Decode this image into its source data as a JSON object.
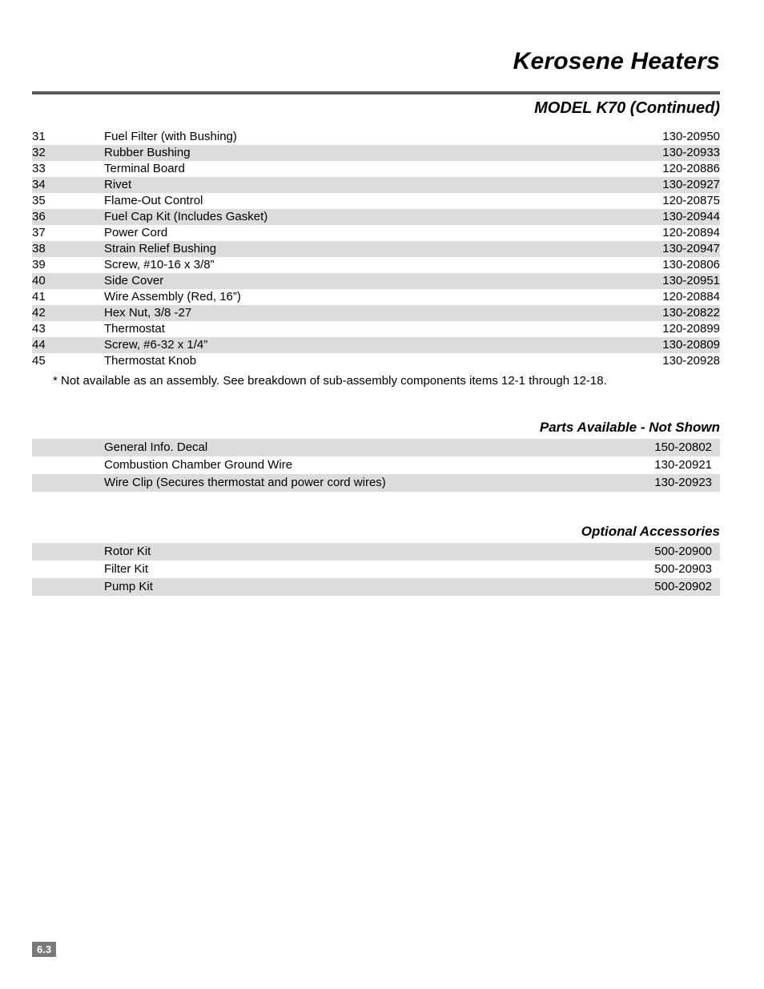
{
  "header": {
    "title": "Kerosene Heaters",
    "subtitle": "MODEL K70 (Continued)"
  },
  "parts": [
    {
      "num": "31",
      "desc": "Fuel Filter (with Bushing)",
      "part": "130-20950",
      "shade": false
    },
    {
      "num": "32",
      "desc": "Rubber Bushing",
      "part": "130-20933",
      "shade": true
    },
    {
      "num": "33",
      "desc": "Terminal Board",
      "part": "120-20886",
      "shade": false
    },
    {
      "num": "34",
      "desc": "Rivet",
      "part": "130-20927",
      "shade": true
    },
    {
      "num": "35",
      "desc": "Flame-Out Control",
      "part": "120-20875",
      "shade": false
    },
    {
      "num": "36",
      "desc": "Fuel Cap Kit (Includes Gasket)",
      "part": "130-20944",
      "shade": true
    },
    {
      "num": "37",
      "desc": "Power Cord",
      "part": "120-20894",
      "shade": false
    },
    {
      "num": "38",
      "desc": "Strain Relief Bushing",
      "part": "130-20947",
      "shade": true
    },
    {
      "num": "39",
      "desc": "Screw, #10-16 x 3/8”",
      "part": "130-20806",
      "shade": false
    },
    {
      "num": "40",
      "desc": "Side Cover",
      "part": "130-20951",
      "shade": true
    },
    {
      "num": "41",
      "desc": "Wire Assembly (Red, 16”)",
      "part": "120-20884",
      "shade": false
    },
    {
      "num": "42",
      "desc": "Hex Nut, 3/8 -27",
      "part": "130-20822",
      "shade": true
    },
    {
      "num": "43",
      "desc": "Thermostat",
      "part": "120-20899",
      "shade": false
    },
    {
      "num": "44",
      "desc": "Screw, #6-32 x 1/4”",
      "part": "130-20809",
      "shade": true
    },
    {
      "num": "45",
      "desc": "Thermostat Knob",
      "part": "130-20928",
      "shade": false
    }
  ],
  "footnote": "* Not available as an assembly.  See breakdown of sub-assembly components items 12-1 through 12-18.",
  "sections": {
    "notshown": {
      "heading": "Parts Available - Not Shown",
      "rows": [
        {
          "desc": "General Info. Decal",
          "part": "150-20802",
          "shade": true
        },
        {
          "desc": "Combustion Chamber Ground Wire",
          "part": "130-20921",
          "shade": false
        },
        {
          "desc": "Wire Clip (Secures thermostat and power cord wires)",
          "part": "130-20923",
          "shade": true
        }
      ]
    },
    "optional": {
      "heading": "Optional Accessories",
      "rows": [
        {
          "desc": "Rotor Kit",
          "part": "500-20900",
          "shade": true
        },
        {
          "desc": "Filter Kit",
          "part": "500-20903",
          "shade": false
        },
        {
          "desc": "Pump Kit",
          "part": "500-20902",
          "shade": true
        }
      ]
    }
  },
  "pagenum": "6.3"
}
